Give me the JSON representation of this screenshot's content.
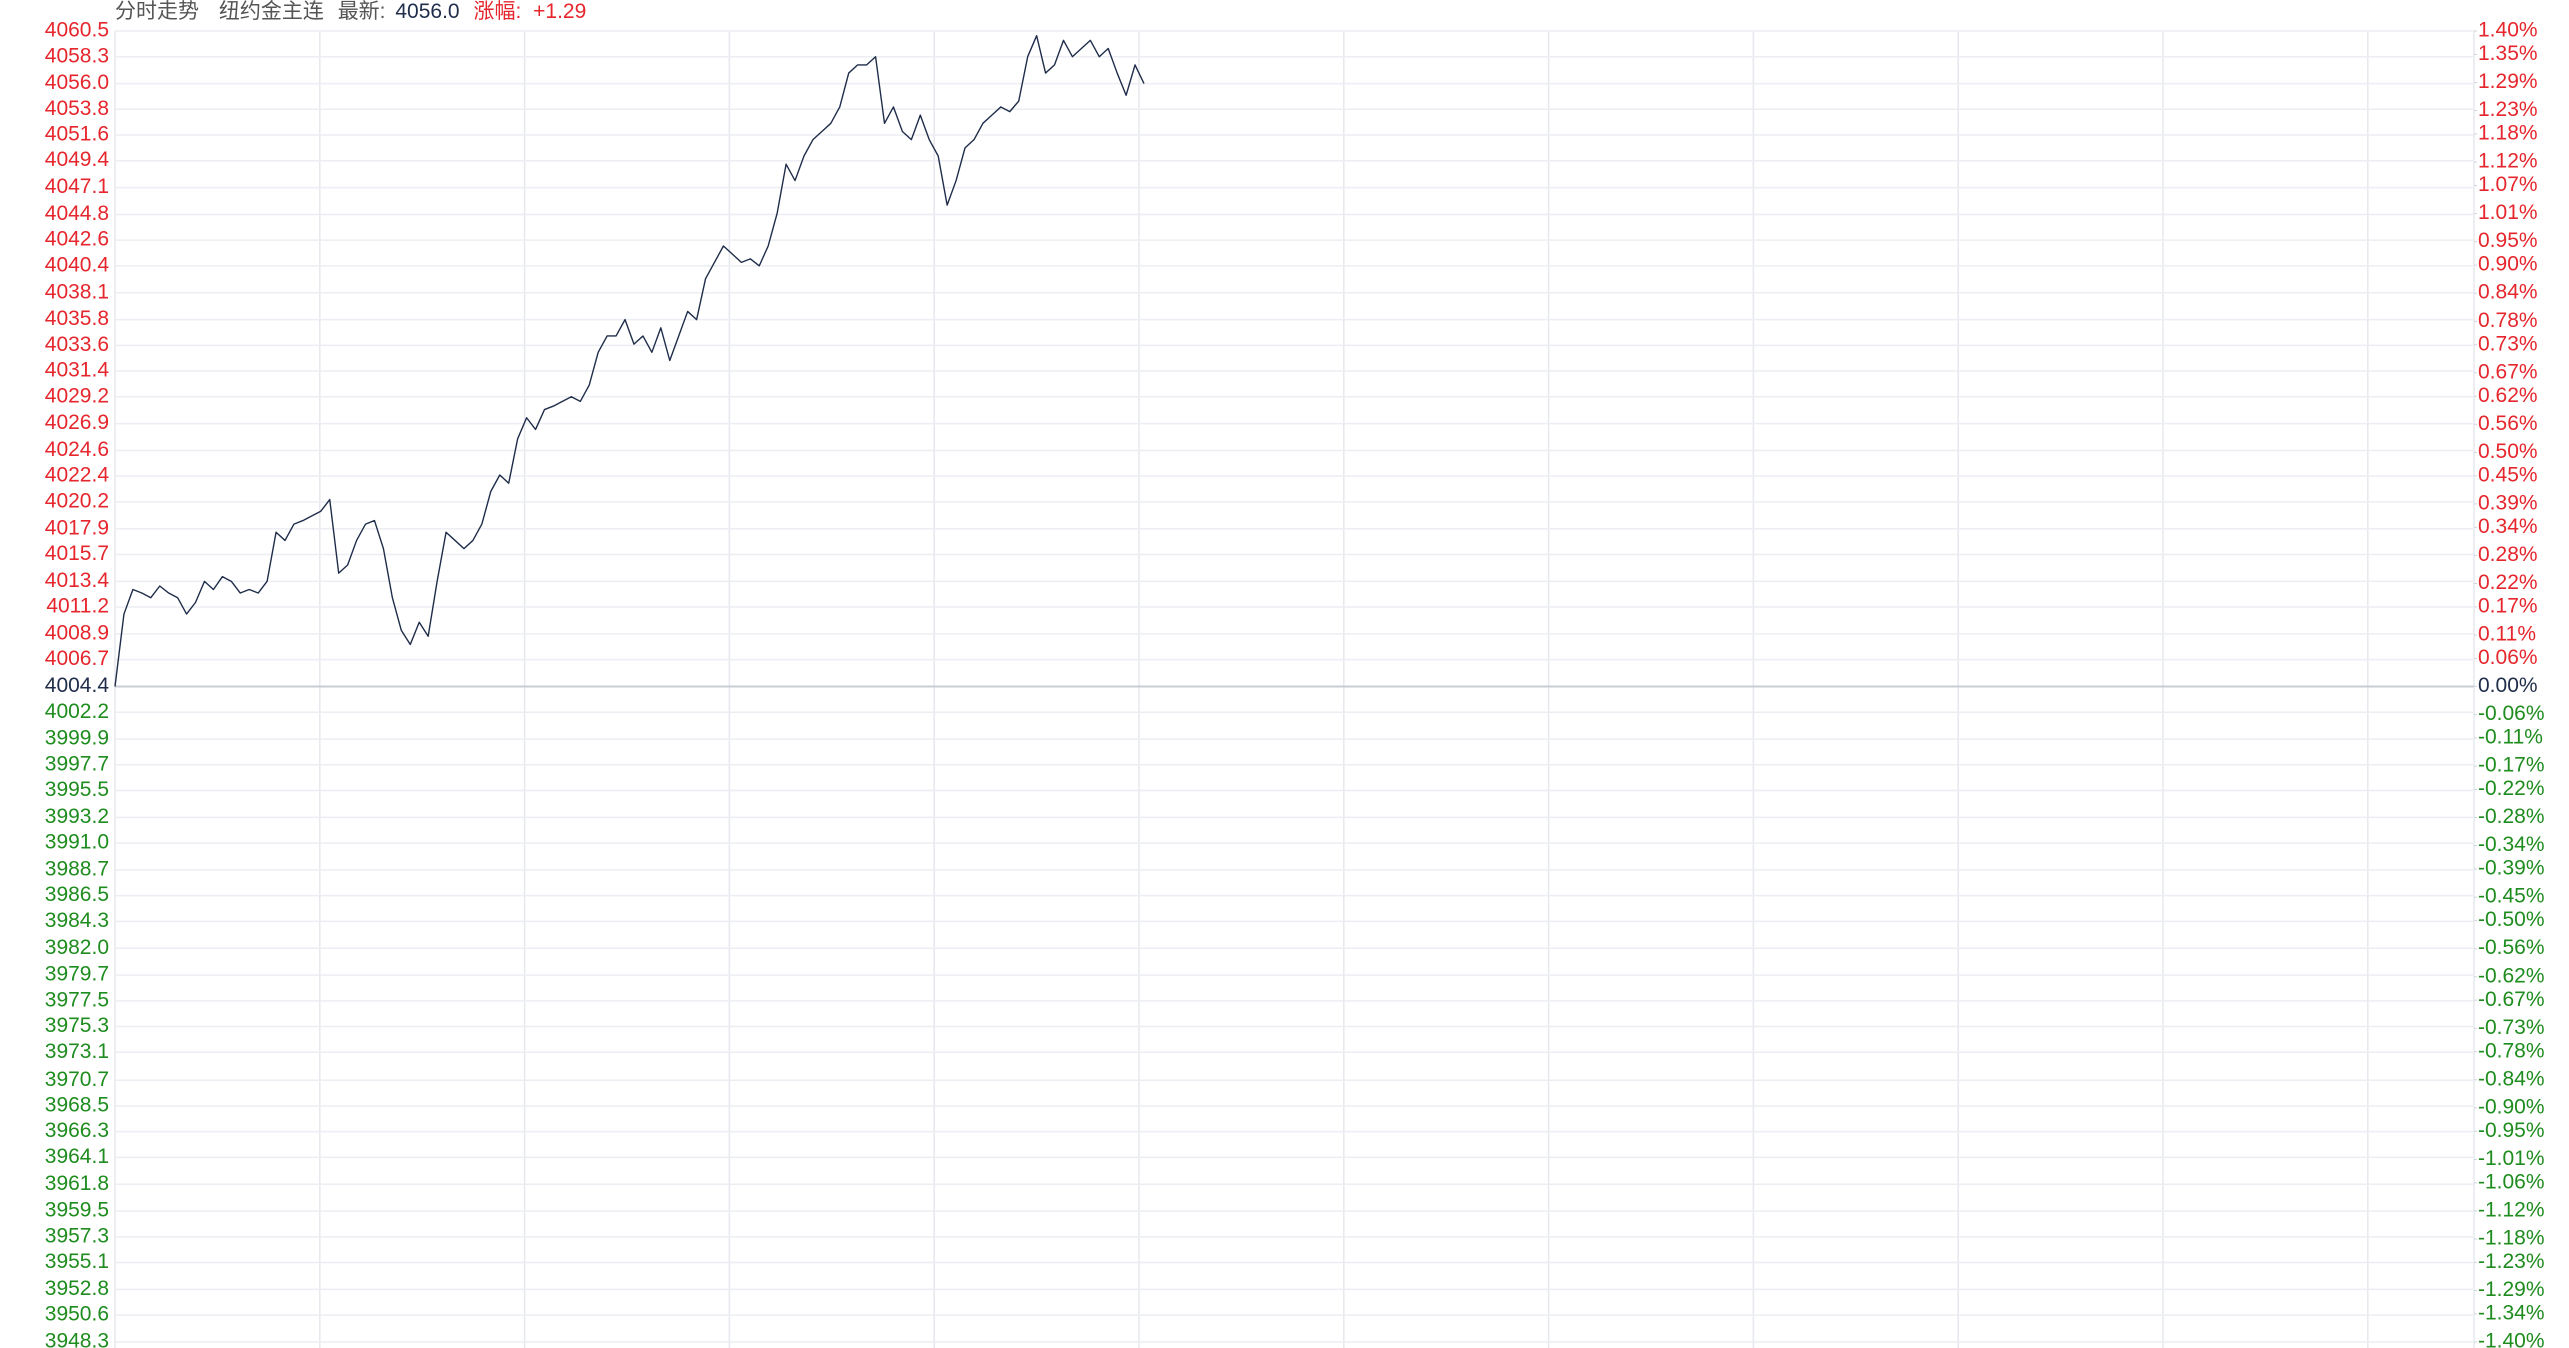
{
  "chart_data": {
    "type": "line",
    "title": "分时走势",
    "instrument": "纽约金主连",
    "latest_label": "最新:",
    "latest": "4056.0",
    "change_label": "涨幅:",
    "change": "+1.29",
    "color": "#1f2d4a",
    "colors": {
      "up": "#e5262d",
      "flat": "#1f2d4a",
      "down": "#1e8c1e"
    },
    "grid": true,
    "ylim": [
      3948.3,
      4060.5
    ],
    "yticks": [
      4060.5,
      4058.3,
      {
        "value": 4056,
        "label": "4056.0"
      },
      4053.8,
      4051.6,
      4049.4,
      4047.1,
      4044.8,
      4042.6,
      4040.4,
      4038.1,
      4035.8,
      4033.6,
      4031.4,
      4029.2,
      4026.9,
      4024.6,
      4022.4,
      4020.2,
      4017.9,
      4015.7,
      4013.4,
      4011.2,
      4008.9,
      4006.7,
      4004.4,
      4002.2,
      3999.9,
      3997.7,
      3995.5,
      3993.2,
      {
        "value": 3991,
        "label": "3991.0"
      },
      3988.7,
      3986.5,
      3984.3,
      {
        "value": 3982,
        "label": "3982.0"
      },
      3979.7,
      3977.5,
      3975.3,
      3973.1,
      3970.7,
      3968.5,
      3966.3,
      3964.1,
      3961.8,
      3959.5,
      3957.3,
      3955.1,
      3952.8,
      3950.6,
      3948.3
    ],
    "y2lim": [
      -1.4,
      1.4
    ],
    "y2ticks": [
      {
        "value": 1.4,
        "label": "1.40%"
      },
      {
        "value": 1.35,
        "label": "1.35%"
      },
      {
        "value": 1.29,
        "label": "1.29%"
      },
      {
        "value": 1.23,
        "label": "1.23%"
      },
      {
        "value": 1.18,
        "label": "1.18%"
      },
      {
        "value": 1.12,
        "label": "1.12%"
      },
      {
        "value": 1.07,
        "label": "1.07%"
      },
      {
        "value": 1.01,
        "label": "1.01%"
      },
      {
        "value": 0.95,
        "label": "0.95%"
      },
      {
        "value": 0.9,
        "label": "0.90%"
      },
      {
        "value": 0.84,
        "label": "0.84%"
      },
      {
        "value": 0.78,
        "label": "0.78%"
      },
      {
        "value": 0.73,
        "label": "0.73%"
      },
      {
        "value": 0.67,
        "label": "0.67%"
      },
      {
        "value": 0.62,
        "label": "0.62%"
      },
      {
        "value": 0.56,
        "label": "0.56%"
      },
      {
        "value": 0.5,
        "label": "0.50%"
      },
      {
        "value": 0.45,
        "label": "0.45%"
      },
      {
        "value": 0.39,
        "label": "0.39%"
      },
      {
        "value": 0.34,
        "label": "0.34%"
      },
      {
        "value": 0.28,
        "label": "0.28%"
      },
      {
        "value": 0.22,
        "label": "0.22%"
      },
      {
        "value": 0.17,
        "label": "0.17%"
      },
      {
        "value": 0.11,
        "label": "0.11%"
      },
      {
        "value": 0.06,
        "label": "0.06%"
      },
      {
        "value": 0,
        "label": "0.00%"
      },
      {
        "value": -0.06,
        "label": "-0.06%"
      },
      {
        "value": -0.11,
        "label": "-0.11%"
      },
      {
        "value": -0.17,
        "label": "-0.17%"
      },
      {
        "value": -0.22,
        "label": "-0.22%"
      },
      {
        "value": -0.28,
        "label": "-0.28%"
      },
      {
        "value": -0.34,
        "label": "-0.34%"
      },
      {
        "value": -0.39,
        "label": "-0.39%"
      },
      {
        "value": -0.45,
        "label": "-0.45%"
      },
      {
        "value": -0.5,
        "label": "-0.50%"
      },
      {
        "value": -0.56,
        "label": "-0.56%"
      },
      {
        "value": -0.62,
        "label": "-0.62%"
      },
      {
        "value": -0.67,
        "label": "-0.67%"
      },
      {
        "value": -0.73,
        "label": "-0.73%"
      },
      {
        "value": -0.78,
        "label": "-0.78%"
      },
      {
        "value": -0.84,
        "label": "-0.84%"
      },
      {
        "value": -0.9,
        "label": "-0.90%"
      },
      {
        "value": -0.95,
        "label": "-0.95%"
      },
      {
        "value": -1.01,
        "label": "-1.01%"
      },
      {
        "value": -1.06,
        "label": "-1.06%"
      },
      {
        "value": -1.12,
        "label": "-1.12%"
      },
      {
        "value": -1.18,
        "label": "-1.18%"
      },
      {
        "value": -1.23,
        "label": "-1.23%"
      },
      {
        "value": -1.29,
        "label": "-1.29%"
      },
      {
        "value": -1.34,
        "label": "-1.34%"
      },
      {
        "value": -1.4,
        "label": "-1.40%"
      }
    ],
    "values": [
      4004.4,
      4010.6,
      4012.7,
      4012.4,
      4012.0,
      4013.0,
      4012.4,
      4012.0,
      4010.6,
      4011.6,
      4013.4,
      4012.7,
      4013.8,
      4013.4,
      4012.4,
      4012.7,
      4012.4,
      4013.4,
      4017.6,
      4016.9,
      4018.3,
      4018.6,
      4019.0,
      4019.4,
      4020.4,
      4014.1,
      4014.8,
      4016.9,
      4018.3,
      4018.6,
      4016.2,
      4012.0,
      4009.2,
      4008.0,
      4009.9,
      4008.7,
      4013.4,
      4017.6,
      4016.9,
      4016.2,
      4016.9,
      4018.3,
      4021.1,
      4022.5,
      4021.8,
      4025.6,
      4027.4,
      4026.4,
      4028.1,
      4028.4,
      4028.8,
      4029.2,
      4028.8,
      4030.2,
      4033.0,
      4034.4,
      4034.4,
      4035.8,
      4033.7,
      4034.4,
      4033.0,
      4035.1,
      4032.3,
      4034.4,
      4036.5,
      4035.8,
      4039.3,
      4040.7,
      4042.1,
      4041.4,
      4040.7,
      4041.0,
      4040.4,
      4042.1,
      4044.9,
      4049.1,
      4047.7,
      4049.8,
      4051.2,
      4051.9,
      4052.6,
      4054.0,
      4056.9,
      4057.6,
      4057.6,
      4058.3,
      4052.6,
      4054.0,
      4051.9,
      4051.2,
      4053.3,
      4051.2,
      4049.8,
      4045.6,
      4047.7,
      4050.5,
      4051.2,
      4052.6,
      4053.3,
      4054.0,
      4053.6,
      4054.5,
      4058.3,
      4060.1,
      4056.9,
      4057.6,
      4059.7,
      4058.3,
      4059.0,
      4059.7,
      4058.3,
      4059.0,
      4056.9,
      4055.0,
      4057.6,
      4056.0
    ]
  }
}
